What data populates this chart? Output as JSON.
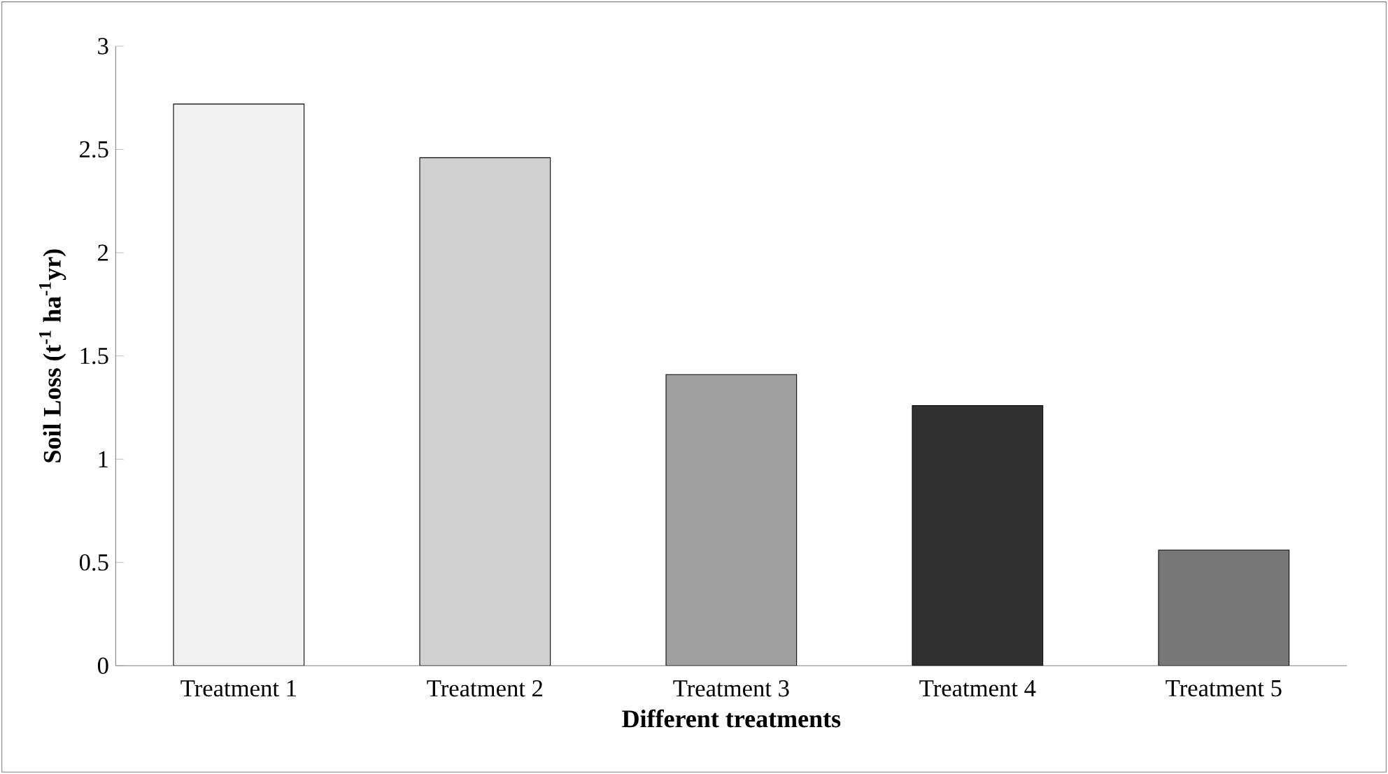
{
  "chart_data": {
    "type": "bar",
    "xlabel": "Different treatments",
    "ylabel": "Soil Loss (t$^{-1}$ ha$^{-1}$yr)",
    "categories": [
      "Treatment 1",
      "Treatment 2",
      "Treatment 3",
      "Treatment 4",
      "Treatment 5"
    ],
    "values": [
      2.72,
      2.46,
      1.41,
      1.26,
      0.56
    ],
    "colors": [
      "#f2f2f2",
      "#d0d0d0",
      "#a0a0a0",
      "#303030",
      "#787878"
    ],
    "ylim": [
      0,
      3
    ],
    "yticks": [
      0,
      0.5,
      1,
      1.5,
      2,
      2.5,
      3
    ]
  }
}
